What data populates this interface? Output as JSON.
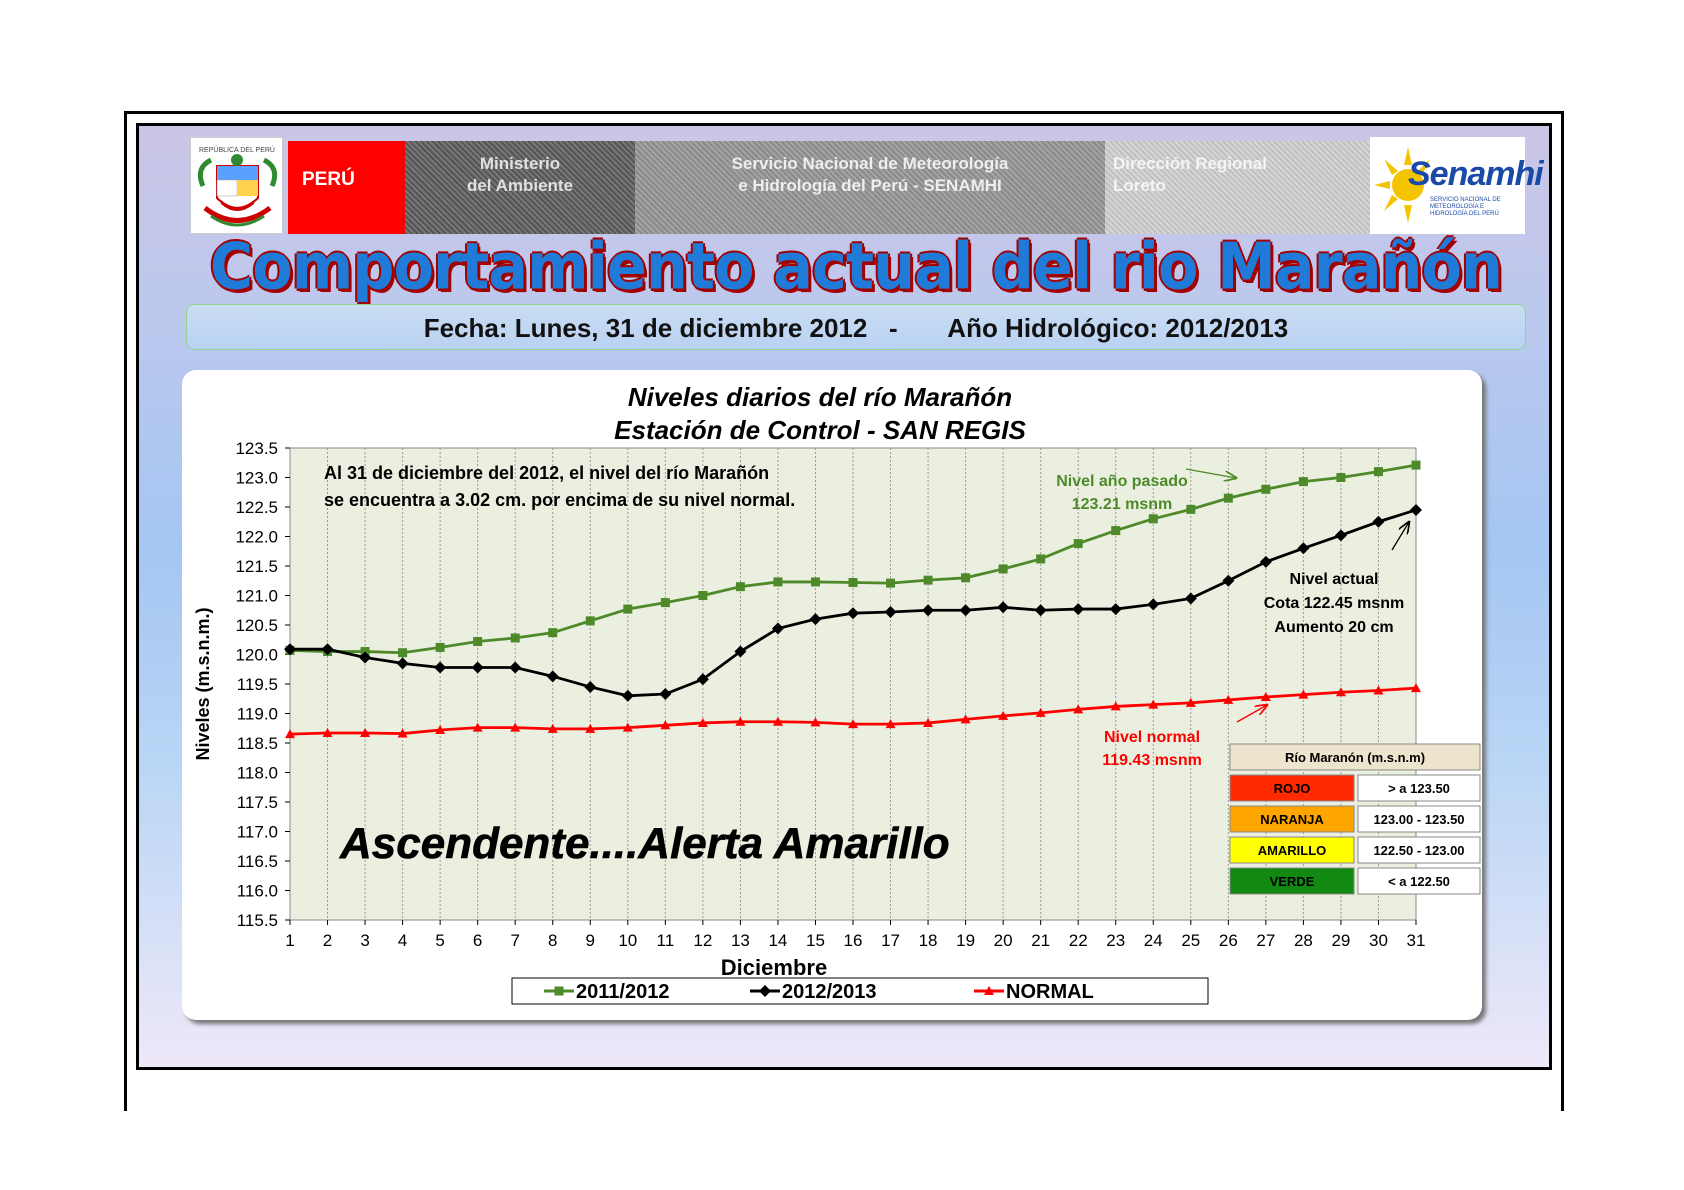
{
  "header": {
    "peru": "PERÚ",
    "ministerio_line1": "Ministerio",
    "ministerio_line2": "del Ambiente",
    "servicio_line1": "Servicio Nacional de Meteorología",
    "servicio_line2": "e Hidrología del Perú - SENAMHI",
    "direccion_line1": "Dirección Regional",
    "direccion_line2": "Loreto",
    "logo_text": "Senamhi",
    "logo_subtext": "SERVICIO NACIONAL DE METEOROLOGÍA E HIDROLOGÍA DEL PERÚ",
    "crest_caption": "REPÚBLICA DEL PERÚ"
  },
  "main_title": "Comportamiento  actual del rio Marañón",
  "date_line": "Fecha: Lunes, 31 de diciembre 2012   -       Año Hidrológico: 2012/2013",
  "colors": {
    "series_2011": "#4e8a2a",
    "series_2012": "#000000",
    "series_normal": "#ff0000",
    "plot_background": "#ebefdf",
    "title_blue": "#1f7ad8",
    "title_outline": "#a30000"
  },
  "chart_data": {
    "type": "line",
    "title_line1": "Niveles diarios del río  Marañón",
    "title_line2": "Estación  de Control - SAN REGIS",
    "xlabel": "Diciembre",
    "ylabel": "Niveles (m.s.n.m.)",
    "ylim": [
      115.5,
      123.5
    ],
    "ytick_step": 0.5,
    "yticks": [
      "115.5",
      "116.0",
      "116.5",
      "117.0",
      "117.5",
      "118.0",
      "118.5",
      "119.0",
      "119.5",
      "120.0",
      "120.5",
      "121.0",
      "121.5",
      "122.0",
      "122.5",
      "123.0",
      "123.5"
    ],
    "categories": [
      "1",
      "2",
      "3",
      "4",
      "5",
      "6",
      "7",
      "8",
      "9",
      "10",
      "11",
      "12",
      "13",
      "14",
      "15",
      "16",
      "17",
      "18",
      "19",
      "20",
      "21",
      "22",
      "23",
      "24",
      "25",
      "26",
      "27",
      "28",
      "29",
      "30",
      "31"
    ],
    "grid": true,
    "legend_position": "bottom",
    "series": [
      {
        "name": "2011/2012",
        "marker": "square",
        "values": [
          120.07,
          120.05,
          120.05,
          120.03,
          120.12,
          120.22,
          120.28,
          120.37,
          120.57,
          120.77,
          120.88,
          121.0,
          121.15,
          121.23,
          121.23,
          121.22,
          121.21,
          121.26,
          121.3,
          121.45,
          121.62,
          121.88,
          122.1,
          122.3,
          122.46,
          122.65,
          122.8,
          122.93,
          123.0,
          123.1,
          123.21
        ]
      },
      {
        "name": "2012/2013",
        "marker": "diamond",
        "values": [
          120.09,
          120.09,
          119.95,
          119.85,
          119.78,
          119.78,
          119.78,
          119.63,
          119.45,
          119.3,
          119.33,
          119.58,
          120.05,
          120.44,
          120.6,
          120.7,
          120.72,
          120.75,
          120.75,
          120.8,
          120.75,
          120.77,
          120.77,
          120.85,
          120.95,
          121.25,
          121.57,
          121.8,
          122.02,
          122.25,
          122.45
        ]
      },
      {
        "name": "NORMAL",
        "marker": "triangle",
        "values": [
          118.65,
          118.67,
          118.67,
          118.66,
          118.72,
          118.76,
          118.76,
          118.74,
          118.74,
          118.76,
          118.8,
          118.84,
          118.86,
          118.86,
          118.85,
          118.82,
          118.82,
          118.84,
          118.9,
          118.96,
          119.01,
          119.07,
          119.12,
          119.15,
          119.18,
          119.23,
          119.28,
          119.32,
          119.36,
          119.39,
          119.43
        ]
      }
    ],
    "annotation_main_line1": "Al  31 de diciembre del  2012,  el nivel del río  Marañón",
    "annotation_main_line2": "se encuentra a  3.02 cm. por encima de su nivel normal.",
    "annotation_prev_line1": "Nivel  año pasado",
    "annotation_prev_line2": "123.21 msnm",
    "annotation_current_line1": "Nivel actual",
    "annotation_current_line2": "Cota 122.45 msnm",
    "annotation_current_line3": "Aumento 20  cm",
    "annotation_normal_line1": "Nivel normal",
    "annotation_normal_line2": "119.43  msnm",
    "alert_text": "Ascendente....Alerta Amarillo",
    "alert_table": {
      "header": "Río  Maranón (m.s.n.m)",
      "rows": [
        {
          "label": "ROJO",
          "range": ">  a 123.50",
          "color": "#ff2a00"
        },
        {
          "label": "NARANJA",
          "range": "123.00 - 123.50",
          "color": "#ffa500"
        },
        {
          "label": "AMARILLO",
          "range": "122.50 - 123.00",
          "color": "#ffff00"
        },
        {
          "label": "VERDE",
          "range": "<   a 122.50",
          "color": "#128a12"
        }
      ]
    }
  }
}
